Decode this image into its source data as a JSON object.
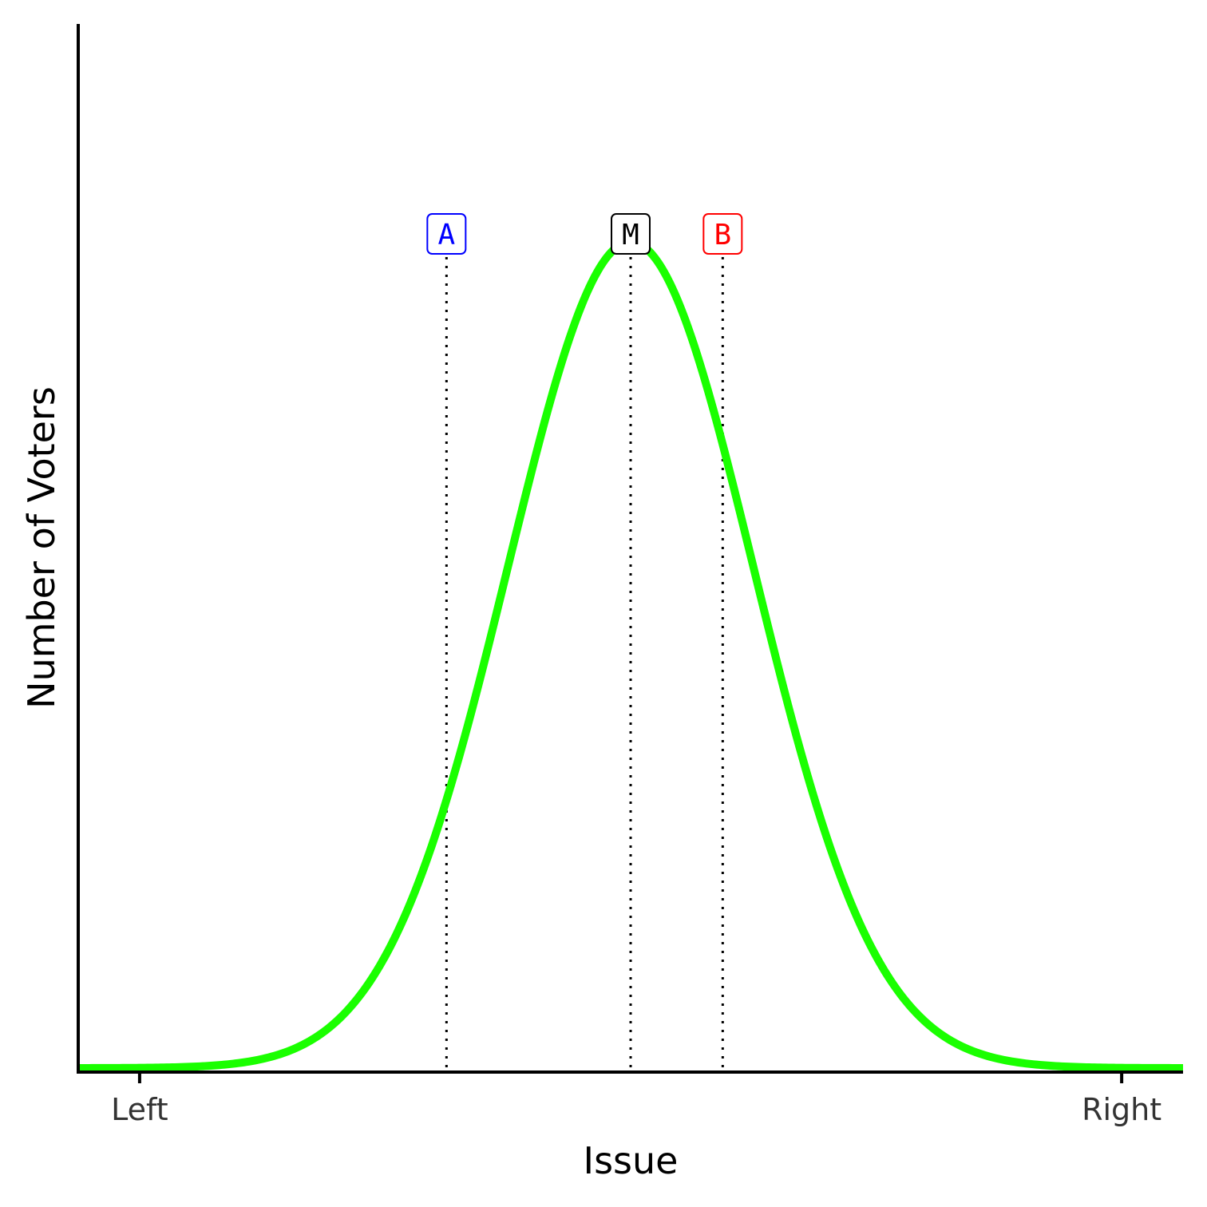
{
  "chart_data": {
    "type": "line",
    "xlabel": "Issue",
    "ylabel": "Number of Voters",
    "xlim": [
      0,
      18
    ],
    "x_ticks": [
      {
        "value": 1,
        "label": "Left"
      },
      {
        "value": 17,
        "label": "Right"
      }
    ],
    "grid": false,
    "legend": "none",
    "series": [
      {
        "distribution": "normal",
        "mean": 9,
        "sd": 2,
        "color": "#1aff00"
      }
    ],
    "markers": [
      {
        "label": "A",
        "x": 6,
        "color": "#0000ff"
      },
      {
        "label": "M",
        "x": 9,
        "color": "#000000"
      },
      {
        "label": "B",
        "x": 10.5,
        "color": "#ff0000"
      }
    ]
  }
}
